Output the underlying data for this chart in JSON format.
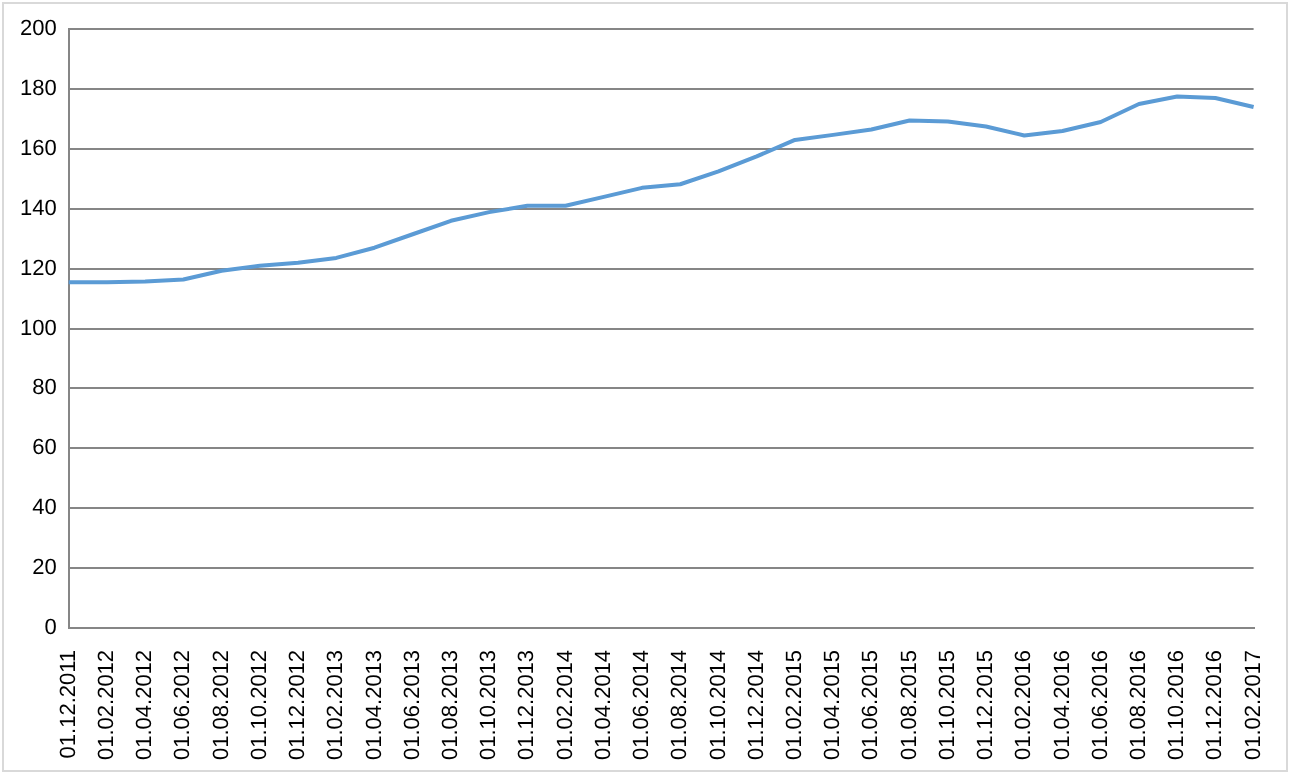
{
  "chart_data": {
    "type": "line",
    "categories": [
      "01.12.2011",
      "01.02.2012",
      "01.04.2012",
      "01.06.2012",
      "01.08.2012",
      "01.10.2012",
      "01.12.2012",
      "01.02.2013",
      "01.04.2013",
      "01.06.2013",
      "01.08.2013",
      "01.10.2013",
      "01.12.2013",
      "01.02.2014",
      "01.04.2014",
      "01.06.2014",
      "01.08.2014",
      "01.10.2014",
      "01.12.2014",
      "01.02.2015",
      "01.04.2015",
      "01.06.2015",
      "01.08.2015",
      "01.10.2015",
      "01.12.2015",
      "01.02.2016",
      "01.04.2016",
      "01.06.2016",
      "01.08.2016",
      "01.10.2016",
      "01.12.2016",
      "01.02.2017"
    ],
    "series": [
      {
        "color": "#5b9bd5",
        "values": [
          115.5,
          115.5,
          115.7,
          116.4,
          119.3,
          121,
          122,
          123.6,
          127,
          131.5,
          136,
          138.9,
          141,
          141,
          144,
          147,
          148.2,
          152.5,
          157.5,
          163,
          164.7,
          166.5,
          169.5,
          169.2,
          167.5,
          164.5,
          166,
          169,
          175,
          177.5,
          177,
          174
        ]
      }
    ],
    "ylim": [
      0,
      200
    ],
    "yticks": [
      0,
      20,
      40,
      60,
      80,
      100,
      120,
      140,
      160,
      180,
      200
    ],
    "grid": "y",
    "legend": false,
    "marker": "none",
    "line_style": "solid"
  }
}
